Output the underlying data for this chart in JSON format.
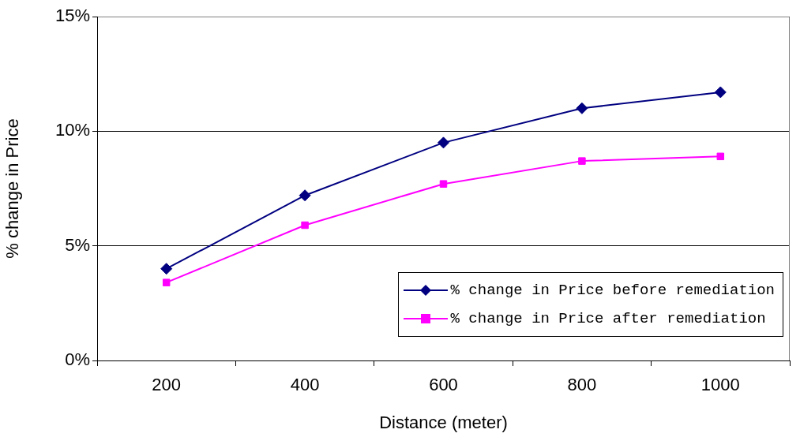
{
  "chart_data": {
    "type": "line",
    "xlabel": "Distance (meter)",
    "ylabel": "% change in Price",
    "categories": [
      "200",
      "400",
      "600",
      "800",
      "1000"
    ],
    "series": [
      {
        "name": "% change in Price before remediation",
        "color": "#000080",
        "marker": "diamond",
        "values": [
          4.0,
          7.2,
          9.5,
          11.0,
          11.7
        ]
      },
      {
        "name": "% change in Price after remediation",
        "color": "#ff00ff",
        "marker": "square",
        "values": [
          3.4,
          5.9,
          7.7,
          8.7,
          8.9
        ]
      }
    ],
    "ylim": [
      0,
      15
    ],
    "yticks": [
      {
        "value": 0,
        "label": "0%"
      },
      {
        "value": 5,
        "label": "5%"
      },
      {
        "value": 10,
        "label": "10%"
      },
      {
        "value": 15,
        "label": "15%"
      }
    ],
    "grid": "y",
    "legend": "bottom right",
    "line_style": "solid"
  }
}
